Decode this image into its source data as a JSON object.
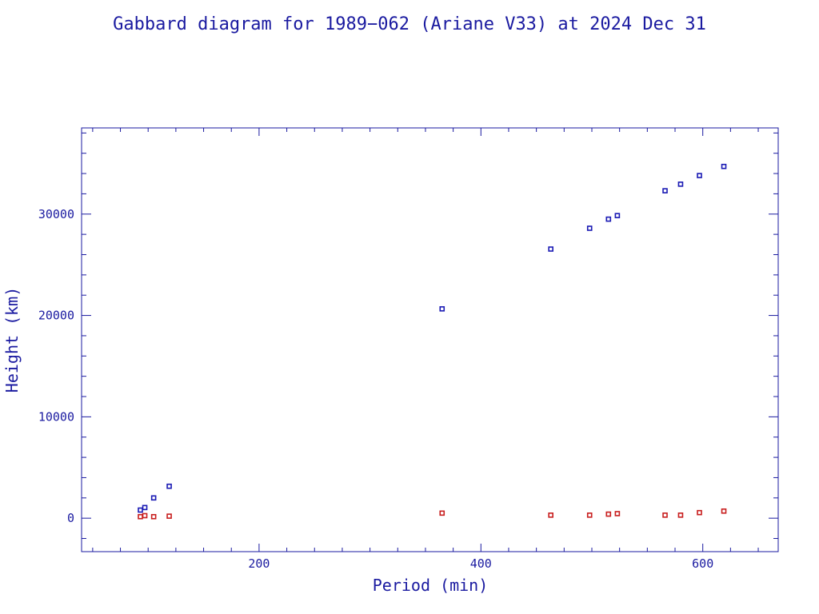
{
  "title": "Gabbard diagram for 1989−062 (Ariane V33) at 2024 Dec 31",
  "colors": {
    "axis": "#1a1aa0",
    "apogee": "#1a1ab4",
    "perigee": "#c81e1e"
  },
  "chart_data": {
    "type": "scatter",
    "title": "Gabbard diagram for 1989−062 (Ariane V33) at 2024 Dec 31",
    "xlabel": "Period (min)",
    "ylabel": "Height (km)",
    "xlim": [
      40,
      668
    ],
    "ylim": [
      -3300,
      38500
    ],
    "x_ticks": [
      200,
      400,
      600
    ],
    "y_ticks": [
      0,
      10000,
      20000,
      30000
    ],
    "grid": false,
    "series": [
      {
        "color": "#1a1ab4",
        "points": [
          [
            93,
            800
          ],
          [
            97,
            1050
          ],
          [
            105,
            2000
          ],
          [
            119,
            3150
          ],
          [
            365,
            20650
          ],
          [
            463,
            26550
          ],
          [
            498,
            28600
          ],
          [
            515,
            29500
          ],
          [
            523,
            29850
          ],
          [
            566,
            32300
          ],
          [
            580,
            32950
          ],
          [
            597,
            33800
          ],
          [
            619,
            34700
          ]
        ]
      },
      {
        "color": "#c81e1e",
        "points": [
          [
            93,
            150
          ],
          [
            97,
            250
          ],
          [
            105,
            150
          ],
          [
            119,
            200
          ],
          [
            365,
            500
          ],
          [
            463,
            300
          ],
          [
            498,
            300
          ],
          [
            515,
            400
          ],
          [
            523,
            450
          ],
          [
            566,
            300
          ],
          [
            580,
            300
          ],
          [
            597,
            550
          ],
          [
            619,
            700
          ]
        ]
      }
    ]
  }
}
